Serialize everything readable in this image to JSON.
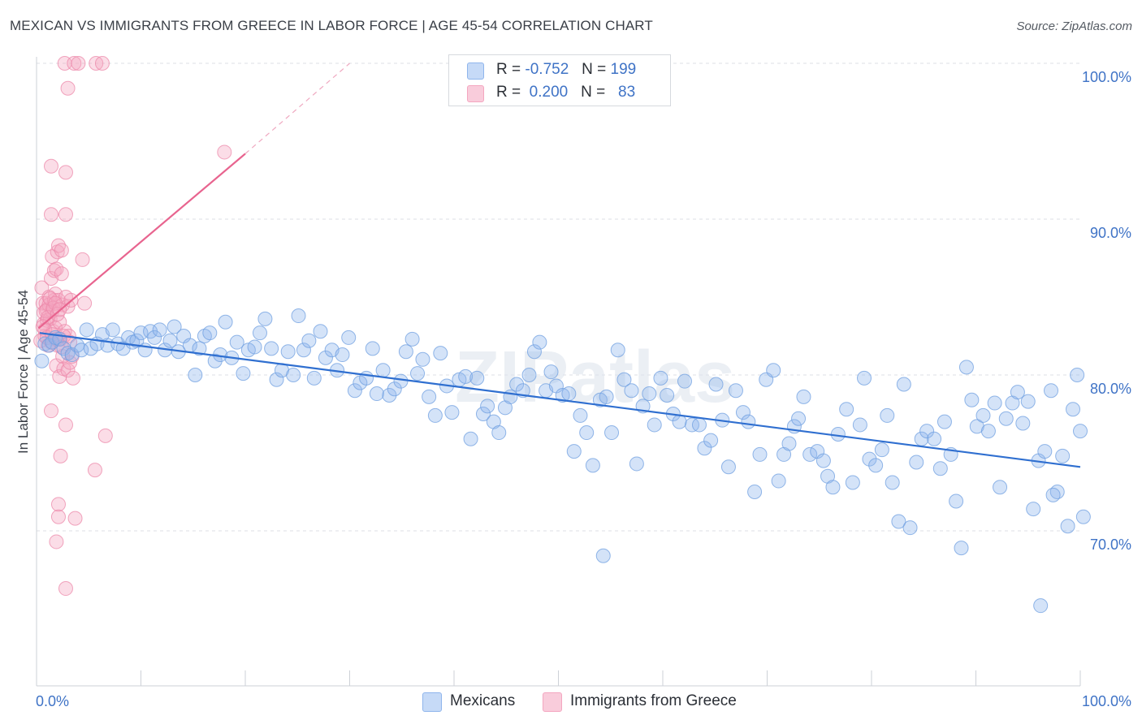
{
  "title": "MEXICAN VS IMMIGRANTS FROM GREECE IN LABOR FORCE | AGE 45-54 CORRELATION CHART",
  "source": "Source: ZipAtlas.com",
  "legend": {
    "rows": [
      {
        "r_label": "R =",
        "r_value": "-0.752",
        "n_label": "N =",
        "n_value": "199",
        "color": "#8fb5ec"
      },
      {
        "r_label": "R =",
        "r_value": "0.200",
        "n_label": "N =",
        "n_value": "83",
        "color": "#f4a6c0"
      }
    ]
  },
  "bottom_legend": [
    {
      "label": "Mexicans",
      "color": "#8fb5ec"
    },
    {
      "label": "Immigrants from Greece",
      "color": "#f4a6c0"
    }
  ],
  "chart_data": {
    "type": "scatter",
    "title": "MEXICAN VS IMMIGRANTS FROM GREECE IN LABOR FORCE | AGE 45-54 CORRELATION CHART",
    "xlabel": "",
    "ylabel": "In Labor Force | Age 45-54",
    "xlim": [
      0,
      100
    ],
    "ylim": [
      62,
      101
    ],
    "x_tick_labels": [
      "0.0%",
      "100.0%"
    ],
    "y_tick_labels": [
      "70.0%",
      "80.0%",
      "90.0%",
      "100.0%"
    ],
    "y_ticks": [
      70,
      80,
      90,
      100
    ],
    "grid": true,
    "watermark": "ZIPatlas",
    "series": [
      {
        "name": "Mexicans",
        "color": "#8fb5ec",
        "stroke": "#6f9fe0",
        "trend": {
          "x": [
            0.3,
            100
          ],
          "y": [
            82.7,
            74.1
          ],
          "color": "#2f6fd0"
        },
        "points": [
          [
            0.5,
            80.9
          ],
          [
            0.8,
            82.0
          ],
          [
            1.2,
            81.9
          ],
          [
            1.5,
            82.1
          ],
          [
            1.8,
            82.4
          ],
          [
            2.2,
            82.3
          ],
          [
            2.6,
            81.7
          ],
          [
            3.0,
            81.4
          ],
          [
            3.4,
            81.3
          ],
          [
            3.9,
            81.9
          ],
          [
            4.3,
            81.6
          ],
          [
            4.8,
            82.9
          ],
          [
            5.2,
            81.7
          ],
          [
            5.8,
            82.0
          ],
          [
            6.3,
            82.6
          ],
          [
            6.8,
            81.9
          ],
          [
            7.3,
            82.9
          ],
          [
            7.8,
            82.0
          ],
          [
            8.3,
            81.7
          ],
          [
            8.8,
            82.4
          ],
          [
            9.2,
            82.1
          ],
          [
            9.6,
            82.2
          ],
          [
            10.0,
            82.7
          ],
          [
            10.4,
            81.6
          ],
          [
            10.9,
            82.8
          ],
          [
            11.3,
            82.4
          ],
          [
            11.8,
            82.9
          ],
          [
            12.3,
            81.6
          ],
          [
            12.8,
            82.2
          ],
          [
            13.2,
            83.1
          ],
          [
            13.6,
            81.5
          ],
          [
            14.1,
            82.5
          ],
          [
            14.7,
            81.9
          ],
          [
            15.2,
            80.0
          ],
          [
            15.6,
            81.7
          ],
          [
            16.1,
            82.5
          ],
          [
            16.6,
            82.7
          ],
          [
            17.1,
            80.9
          ],
          [
            17.6,
            81.3
          ],
          [
            18.1,
            83.4
          ],
          [
            18.7,
            81.1
          ],
          [
            19.2,
            82.1
          ],
          [
            19.8,
            80.1
          ],
          [
            20.3,
            81.6
          ],
          [
            20.9,
            81.8
          ],
          [
            21.4,
            82.7
          ],
          [
            21.9,
            83.6
          ],
          [
            22.5,
            81.7
          ],
          [
            23.0,
            79.7
          ],
          [
            23.5,
            80.3
          ],
          [
            24.1,
            81.5
          ],
          [
            24.6,
            80.0
          ],
          [
            25.1,
            83.8
          ],
          [
            25.6,
            81.6
          ],
          [
            26.1,
            82.2
          ],
          [
            26.6,
            79.8
          ],
          [
            27.2,
            82.8
          ],
          [
            27.7,
            81.1
          ],
          [
            28.3,
            81.6
          ],
          [
            28.8,
            80.3
          ],
          [
            29.3,
            81.3
          ],
          [
            29.9,
            82.4
          ],
          [
            30.5,
            79.0
          ],
          [
            31.0,
            79.5
          ],
          [
            31.6,
            79.8
          ],
          [
            32.2,
            81.7
          ],
          [
            32.6,
            78.8
          ],
          [
            33.2,
            80.3
          ],
          [
            33.8,
            78.7
          ],
          [
            34.3,
            79.1
          ],
          [
            34.9,
            79.6
          ],
          [
            35.4,
            81.5
          ],
          [
            36.0,
            82.3
          ],
          [
            36.5,
            80.1
          ],
          [
            37.0,
            81.0
          ],
          [
            37.6,
            78.6
          ],
          [
            38.2,
            77.4
          ],
          [
            38.7,
            81.4
          ],
          [
            39.3,
            79.3
          ],
          [
            39.8,
            77.6
          ],
          [
            40.5,
            79.7
          ],
          [
            41.1,
            79.9
          ],
          [
            41.6,
            75.9
          ],
          [
            42.2,
            79.8
          ],
          [
            42.8,
            77.5
          ],
          [
            43.2,
            78.0
          ],
          [
            43.8,
            77.0
          ],
          [
            44.3,
            76.3
          ],
          [
            44.9,
            77.9
          ],
          [
            45.4,
            78.6
          ],
          [
            46.0,
            79.4
          ],
          [
            46.6,
            79.0
          ],
          [
            47.2,
            80.0
          ],
          [
            47.7,
            81.5
          ],
          [
            48.2,
            82.1
          ],
          [
            48.8,
            79.0
          ],
          [
            49.3,
            80.2
          ],
          [
            49.8,
            79.3
          ],
          [
            50.4,
            78.7
          ],
          [
            51.0,
            78.8
          ],
          [
            51.5,
            75.1
          ],
          [
            52.1,
            77.4
          ],
          [
            52.7,
            76.3
          ],
          [
            53.3,
            74.2
          ],
          [
            54.0,
            78.4
          ],
          [
            54.6,
            78.6
          ],
          [
            55.1,
            76.3
          ],
          [
            55.7,
            81.6
          ],
          [
            56.3,
            79.7
          ],
          [
            57.0,
            79.0
          ],
          [
            57.5,
            74.3
          ],
          [
            58.1,
            78.0
          ],
          [
            58.7,
            78.8
          ],
          [
            59.2,
            76.8
          ],
          [
            59.8,
            79.8
          ],
          [
            60.4,
            78.7
          ],
          [
            61.0,
            77.5
          ],
          [
            61.6,
            77.0
          ],
          [
            62.1,
            79.6
          ],
          [
            62.8,
            76.8
          ],
          [
            63.5,
            76.8
          ],
          [
            64.0,
            75.3
          ],
          [
            64.6,
            75.8
          ],
          [
            65.1,
            79.4
          ],
          [
            65.7,
            77.1
          ],
          [
            66.3,
            74.1
          ],
          [
            67.0,
            79.0
          ],
          [
            67.7,
            77.6
          ],
          [
            68.2,
            77.0
          ],
          [
            68.8,
            72.5
          ],
          [
            69.3,
            74.9
          ],
          [
            69.9,
            79.7
          ],
          [
            70.6,
            80.3
          ],
          [
            71.1,
            73.2
          ],
          [
            71.6,
            74.9
          ],
          [
            72.1,
            75.6
          ],
          [
            72.6,
            76.7
          ],
          [
            73.0,
            77.2
          ],
          [
            73.5,
            78.6
          ],
          [
            74.1,
            74.9
          ],
          [
            74.8,
            75.1
          ],
          [
            75.4,
            74.5
          ],
          [
            75.8,
            73.5
          ],
          [
            76.3,
            72.8
          ],
          [
            76.8,
            76.2
          ],
          [
            77.6,
            77.8
          ],
          [
            78.2,
            73.1
          ],
          [
            78.9,
            76.8
          ],
          [
            79.3,
            79.8
          ],
          [
            79.8,
            74.6
          ],
          [
            80.4,
            74.2
          ],
          [
            81.0,
            75.2
          ],
          [
            81.5,
            77.4
          ],
          [
            82.0,
            73.1
          ],
          [
            82.6,
            70.6
          ],
          [
            83.1,
            79.4
          ],
          [
            83.7,
            70.2
          ],
          [
            84.3,
            74.4
          ],
          [
            84.8,
            75.9
          ],
          [
            85.3,
            76.4
          ],
          [
            86.0,
            75.9
          ],
          [
            86.6,
            74.0
          ],
          [
            87.0,
            77.0
          ],
          [
            87.6,
            74.9
          ],
          [
            88.1,
            71.9
          ],
          [
            88.6,
            68.9
          ],
          [
            89.1,
            80.5
          ],
          [
            89.6,
            78.4
          ],
          [
            90.1,
            76.7
          ],
          [
            90.7,
            77.4
          ],
          [
            91.2,
            76.4
          ],
          [
            91.8,
            78.2
          ],
          [
            92.3,
            72.8
          ],
          [
            92.9,
            77.2
          ],
          [
            93.5,
            78.2
          ],
          [
            94.0,
            78.9
          ],
          [
            94.5,
            76.9
          ],
          [
            95.0,
            78.3
          ],
          [
            95.5,
            71.4
          ],
          [
            96.0,
            74.5
          ],
          [
            96.6,
            75.1
          ],
          [
            97.2,
            79.0
          ],
          [
            97.8,
            72.5
          ],
          [
            98.3,
            74.8
          ],
          [
            98.8,
            70.3
          ],
          [
            99.3,
            77.8
          ],
          [
            99.7,
            80.0
          ],
          [
            100.0,
            76.4
          ],
          [
            100.3,
            70.9
          ],
          [
            96.2,
            65.2
          ],
          [
            54.3,
            68.4
          ],
          [
            97.4,
            72.3
          ]
        ]
      },
      {
        "name": "Immigrants from Greece",
        "color": "#f4a6c0",
        "stroke": "#ec88aa",
        "trend": {
          "x": [
            0.2,
            20
          ],
          "y": [
            83.0,
            94.2
          ],
          "color": "#e8648f"
        },
        "trend_ext": {
          "x": [
            20,
            30
          ],
          "y": [
            94.2,
            100.0
          ],
          "color": "#efa8c0"
        },
        "points": [
          [
            0.4,
            82.2
          ],
          [
            0.5,
            85.6
          ],
          [
            0.6,
            84.6
          ],
          [
            0.7,
            84.0
          ],
          [
            0.7,
            83.3
          ],
          [
            0.8,
            82.5
          ],
          [
            0.9,
            84.6
          ],
          [
            1.0,
            84.2
          ],
          [
            1.0,
            83.5
          ],
          [
            1.1,
            81.9
          ],
          [
            1.2,
            85.0
          ],
          [
            1.2,
            84.5
          ],
          [
            1.3,
            83.6
          ],
          [
            1.4,
            82.1
          ],
          [
            1.4,
            86.2
          ],
          [
            1.5,
            84.1
          ],
          [
            1.5,
            87.6
          ],
          [
            1.6,
            82.8
          ],
          [
            1.7,
            86.7
          ],
          [
            1.7,
            84.8
          ],
          [
            1.8,
            83.0
          ],
          [
            1.8,
            85.2
          ],
          [
            1.9,
            86.8
          ],
          [
            1.9,
            80.6
          ],
          [
            2.0,
            87.9
          ],
          [
            2.0,
            81.9
          ],
          [
            2.1,
            88.3
          ],
          [
            2.1,
            84.8
          ],
          [
            2.2,
            83.4
          ],
          [
            2.2,
            79.9
          ],
          [
            2.3,
            82.3
          ],
          [
            2.4,
            86.5
          ],
          [
            2.4,
            88.0
          ],
          [
            2.5,
            84.5
          ],
          [
            2.5,
            81.2
          ],
          [
            2.6,
            80.4
          ],
          [
            2.7,
            82.8
          ],
          [
            2.8,
            85.0
          ],
          [
            2.8,
            76.8
          ],
          [
            3.0,
            80.3
          ],
          [
            3.0,
            84.4
          ],
          [
            3.1,
            82.5
          ],
          [
            3.2,
            80.8
          ],
          [
            3.3,
            84.8
          ],
          [
            3.4,
            81.2
          ],
          [
            3.5,
            79.8
          ],
          [
            1.4,
            93.4
          ],
          [
            2.8,
            93.0
          ],
          [
            1.4,
            90.3
          ],
          [
            2.8,
            90.3
          ],
          [
            2.1,
            71.7
          ],
          [
            2.1,
            70.9
          ],
          [
            1.9,
            69.3
          ],
          [
            2.3,
            74.8
          ],
          [
            1.4,
            77.7
          ],
          [
            2.8,
            66.3
          ],
          [
            3.7,
            70.8
          ],
          [
            5.6,
            73.9
          ],
          [
            6.6,
            76.1
          ],
          [
            4.4,
            87.4
          ],
          [
            4.6,
            84.6
          ],
          [
            2.7,
            100.0
          ],
          [
            3.6,
            100.0
          ],
          [
            4.0,
            100.0
          ],
          [
            5.7,
            100.0
          ],
          [
            6.3,
            100.0
          ],
          [
            3.0,
            98.4
          ],
          [
            18.0,
            94.3
          ],
          [
            0.9,
            84.1
          ],
          [
            1.1,
            83.7
          ],
          [
            1.3,
            84.9
          ],
          [
            1.6,
            84.3
          ],
          [
            1.8,
            84.6
          ],
          [
            2.0,
            83.9
          ],
          [
            2.2,
            84.2
          ],
          [
            0.6,
            83.1
          ],
          [
            0.8,
            82.9
          ],
          [
            1.0,
            82.4
          ],
          [
            2.6,
            82.5
          ],
          [
            3.2,
            82.1
          ],
          [
            1.5,
            82.6
          ],
          [
            1.9,
            82.3
          ],
          [
            2.4,
            81.8
          ]
        ]
      }
    ]
  }
}
